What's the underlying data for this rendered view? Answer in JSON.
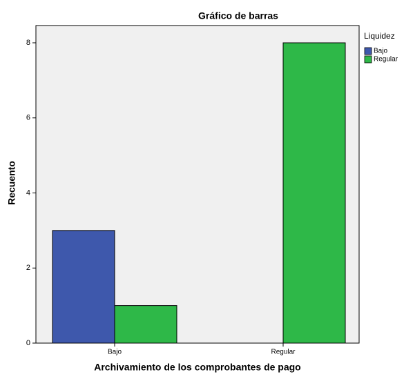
{
  "chart_data": {
    "type": "bar",
    "title": "Gráfico de barras",
    "x_label": "Archivamiento de los comprobantes de pago",
    "y_label": "Recuento",
    "legend_title": "Liquidez",
    "categories": [
      "Bajo",
      "Regular"
    ],
    "series": [
      {
        "name": "Bajo",
        "color": "#3e58ac",
        "values": [
          3,
          null
        ]
      },
      {
        "name": "Regular",
        "color": "#2eb848",
        "values": [
          1,
          8
        ]
      }
    ],
    "ylim": [
      0,
      8.46
    ],
    "yticks": [
      0,
      2,
      4,
      6,
      8
    ],
    "grid": false,
    "legend": "right"
  }
}
